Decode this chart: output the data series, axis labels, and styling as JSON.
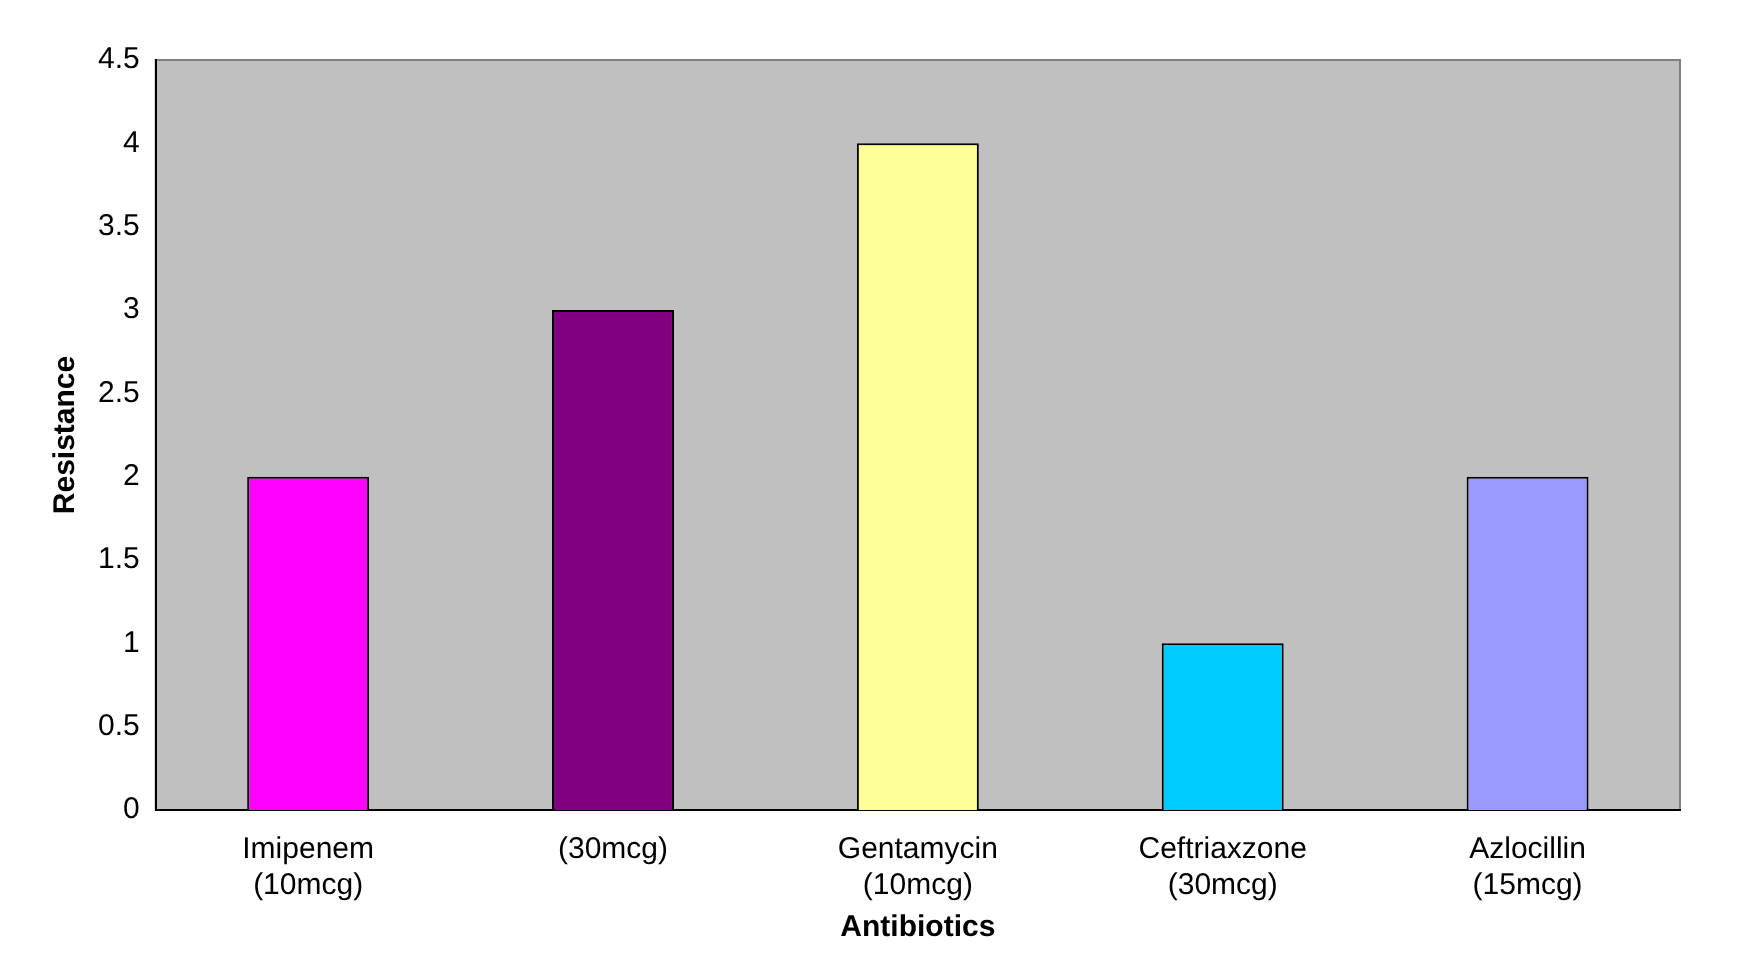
{
  "chart_data": {
    "type": "bar",
    "xlabel": "Antibiotics",
    "ylabel": "Resistance",
    "categories": [
      "Imipenem (10mcg)",
      "(30mcg)",
      "Gentamycin (10mcg)",
      "Ceftriaxzone (30mcg)",
      "Azlocillin (15mcg)"
    ],
    "values": [
      2,
      3,
      4,
      1,
      2
    ],
    "colors": [
      "#ff00ff",
      "#800080",
      "#ffff99",
      "#00ccff",
      "#9999ff"
    ],
    "ylim": [
      0,
      4.5
    ],
    "yticks": [
      0,
      0.5,
      1,
      1.5,
      2,
      2.5,
      3,
      3.5,
      4,
      4.5
    ],
    "grid": false,
    "legend": false
  }
}
